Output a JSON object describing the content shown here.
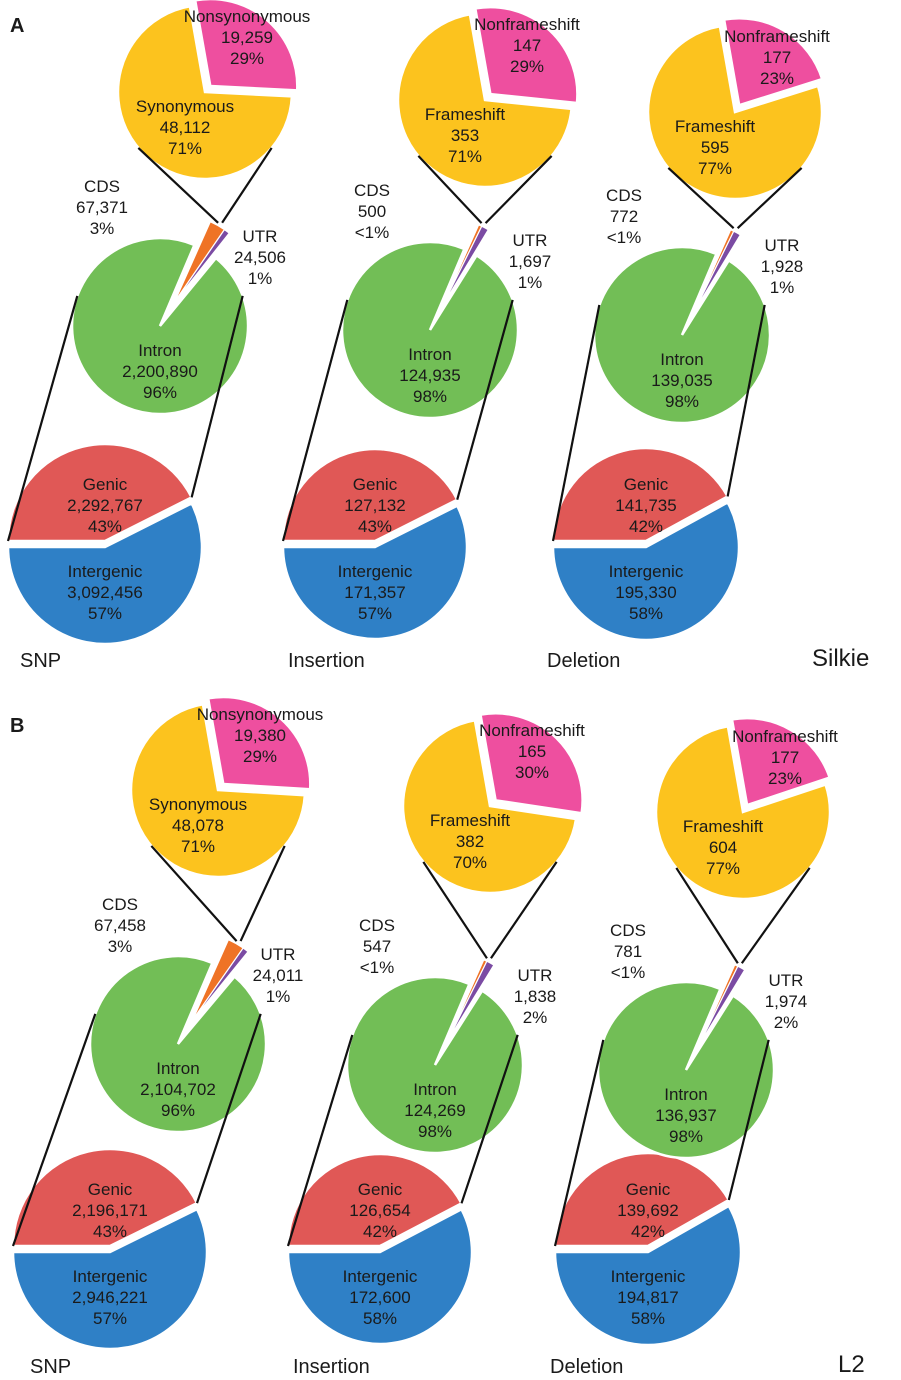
{
  "colors": {
    "synonymous": "#fcc31e",
    "nonsynonymous": "#ee4f9f",
    "frameshift": "#fcc31e",
    "nonframeshift": "#ee4f9f",
    "intron": "#72be56",
    "cds": "#ef7326",
    "utr": "#7b4ba3",
    "genic": "#e05856",
    "intergenic": "#2f80c6",
    "connector": "#111111"
  },
  "chart_data": [
    {
      "type": "pie",
      "panel": "A",
      "sample": "Silkie",
      "charts": [
        {
          "variant": "SNP",
          "coding": {
            "slices": [
              {
                "key": "nonsynonymous",
                "name": "Nonsynonymous",
                "count": "19,259",
                "pct": "29%",
                "value": 19259
              },
              {
                "key": "synonymous",
                "name": "Synonymous",
                "count": "48,112",
                "pct": "71%",
                "value": 48112
              }
            ]
          },
          "genic_breakdown": {
            "slices": [
              {
                "key": "intron",
                "name": "Intron",
                "count": "2,200,890",
                "pct": "96%",
                "value": 2200890
              },
              {
                "key": "cds",
                "name": "CDS",
                "count": "67,371",
                "pct": "3%",
                "value": 67371
              },
              {
                "key": "utr",
                "name": "UTR",
                "count": "24,506",
                "pct": "1%",
                "value": 24506
              }
            ]
          },
          "genome": {
            "slices": [
              {
                "key": "genic",
                "name": "Genic",
                "count": "2,292,767",
                "pct": "43%",
                "value": 2292767
              },
              {
                "key": "intergenic",
                "name": "Intergenic",
                "count": "3,092,456",
                "pct": "57%",
                "value": 3092456
              }
            ]
          }
        },
        {
          "variant": "Insertion",
          "coding": {
            "slices": [
              {
                "key": "nonframeshift",
                "name": "Nonframeshift",
                "count": "147",
                "pct": "29%",
                "value": 147
              },
              {
                "key": "frameshift",
                "name": "Frameshift",
                "count": "353",
                "pct": "71%",
                "value": 353
              }
            ]
          },
          "genic_breakdown": {
            "slices": [
              {
                "key": "intron",
                "name": "Intron",
                "count": "124,935",
                "pct": "98%",
                "value": 124935
              },
              {
                "key": "cds",
                "name": "CDS",
                "count": "500",
                "pct": "<1%",
                "value": 500
              },
              {
                "key": "utr",
                "name": "UTR",
                "count": "1,697",
                "pct": "1%",
                "value": 1697
              }
            ]
          },
          "genome": {
            "slices": [
              {
                "key": "genic",
                "name": "Genic",
                "count": "127,132",
                "pct": "43%",
                "value": 127132
              },
              {
                "key": "intergenic",
                "name": "Intergenic",
                "count": "171,357",
                "pct": "57%",
                "value": 171357
              }
            ]
          }
        },
        {
          "variant": "Deletion",
          "coding": {
            "slices": [
              {
                "key": "nonframeshift",
                "name": "Nonframeshift",
                "count": "177",
                "pct": "23%",
                "value": 177
              },
              {
                "key": "frameshift",
                "name": "Frameshift",
                "count": "595",
                "pct": "77%",
                "value": 595
              }
            ]
          },
          "genic_breakdown": {
            "slices": [
              {
                "key": "intron",
                "name": "Intron",
                "count": "139,035",
                "pct": "98%",
                "value": 139035
              },
              {
                "key": "cds",
                "name": "CDS",
                "count": "772",
                "pct": "<1%",
                "value": 772
              },
              {
                "key": "utr",
                "name": "UTR",
                "count": "1,928",
                "pct": "1%",
                "value": 1928
              }
            ]
          },
          "genome": {
            "slices": [
              {
                "key": "genic",
                "name": "Genic",
                "count": "141,735",
                "pct": "42%",
                "value": 141735
              },
              {
                "key": "intergenic",
                "name": "Intergenic",
                "count": "195,330",
                "pct": "58%",
                "value": 195330
              }
            ]
          }
        }
      ]
    },
    {
      "type": "pie",
      "panel": "B",
      "sample": "L2",
      "charts": [
        {
          "variant": "SNP",
          "coding": {
            "slices": [
              {
                "key": "nonsynonymous",
                "name": "Nonsynonymous",
                "count": "19,380",
                "pct": "29%",
                "value": 19380
              },
              {
                "key": "synonymous",
                "name": "Synonymous",
                "count": "48,078",
                "pct": "71%",
                "value": 48078
              }
            ]
          },
          "genic_breakdown": {
            "slices": [
              {
                "key": "intron",
                "name": "Intron",
                "count": "2,104,702",
                "pct": "96%",
                "value": 2104702
              },
              {
                "key": "cds",
                "name": "CDS",
                "count": "67,458",
                "pct": "3%",
                "value": 67458
              },
              {
                "key": "utr",
                "name": "UTR",
                "count": "24,011",
                "pct": "1%",
                "value": 24011
              }
            ]
          },
          "genome": {
            "slices": [
              {
                "key": "genic",
                "name": "Genic",
                "count": "2,196,171",
                "pct": "43%",
                "value": 2196171
              },
              {
                "key": "intergenic",
                "name": "Intergenic",
                "count": "2,946,221",
                "pct": "57%",
                "value": 2946221
              }
            ]
          }
        },
        {
          "variant": "Insertion",
          "coding": {
            "slices": [
              {
                "key": "nonframeshift",
                "name": "Nonframeshift",
                "count": "165",
                "pct": "30%",
                "value": 165
              },
              {
                "key": "frameshift",
                "name": "Frameshift",
                "count": "382",
                "pct": "70%",
                "value": 382
              }
            ]
          },
          "genic_breakdown": {
            "slices": [
              {
                "key": "intron",
                "name": "Intron",
                "count": "124,269",
                "pct": "98%",
                "value": 124269
              },
              {
                "key": "cds",
                "name": "CDS",
                "count": "547",
                "pct": "<1%",
                "value": 547
              },
              {
                "key": "utr",
                "name": "UTR",
                "count": "1,838",
                "pct": "2%",
                "value": 1838
              }
            ]
          },
          "genome": {
            "slices": [
              {
                "key": "genic",
                "name": "Genic",
                "count": "126,654",
                "pct": "42%",
                "value": 126654
              },
              {
                "key": "intergenic",
                "name": "Intergenic",
                "count": "172,600",
                "pct": "58%",
                "value": 172600
              }
            ]
          }
        },
        {
          "variant": "Deletion",
          "coding": {
            "slices": [
              {
                "key": "nonframeshift",
                "name": "Nonframeshift",
                "count": "177",
                "pct": "23%",
                "value": 177
              },
              {
                "key": "frameshift",
                "name": "Frameshift",
                "count": "604",
                "pct": "77%",
                "value": 604
              }
            ]
          },
          "genic_breakdown": {
            "slices": [
              {
                "key": "intron",
                "name": "Intron",
                "count": "136,937",
                "pct": "98%",
                "value": 136937
              },
              {
                "key": "cds",
                "name": "CDS",
                "count": "781",
                "pct": "<1%",
                "value": 781
              },
              {
                "key": "utr",
                "name": "UTR",
                "count": "1,974",
                "pct": "2%",
                "value": 1974
              }
            ]
          },
          "genome": {
            "slices": [
              {
                "key": "genic",
                "name": "Genic",
                "count": "139,692",
                "pct": "42%",
                "value": 139692
              },
              {
                "key": "intergenic",
                "name": "Intergenic",
                "count": "194,817",
                "pct": "58%",
                "value": 194817
              }
            ]
          }
        }
      ]
    }
  ]
}
